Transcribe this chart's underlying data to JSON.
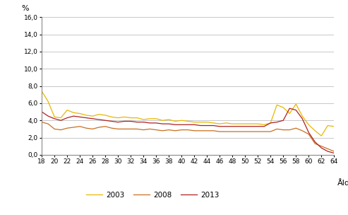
{
  "ages": [
    18,
    19,
    20,
    21,
    22,
    23,
    24,
    25,
    26,
    27,
    28,
    29,
    30,
    31,
    32,
    33,
    34,
    35,
    36,
    37,
    38,
    39,
    40,
    41,
    42,
    43,
    44,
    45,
    46,
    47,
    48,
    49,
    50,
    51,
    52,
    53,
    54,
    55,
    56,
    57,
    58,
    59,
    60,
    61,
    62,
    63,
    64
  ],
  "y2003": [
    7.4,
    6.2,
    4.4,
    4.3,
    5.2,
    4.9,
    4.8,
    4.6,
    4.5,
    4.7,
    4.6,
    4.4,
    4.3,
    4.4,
    4.3,
    4.3,
    4.1,
    4.2,
    4.2,
    4.0,
    4.1,
    3.9,
    4.0,
    3.9,
    3.8,
    3.8,
    3.8,
    3.7,
    3.6,
    3.7,
    3.6,
    3.6,
    3.6,
    3.6,
    3.6,
    3.5,
    3.7,
    5.8,
    5.5,
    4.8,
    5.9,
    4.5,
    3.5,
    2.8,
    2.2,
    3.4,
    3.3
  ],
  "y2008": [
    3.8,
    3.6,
    3.0,
    2.9,
    3.1,
    3.2,
    3.3,
    3.1,
    3.0,
    3.2,
    3.3,
    3.1,
    3.0,
    3.0,
    3.0,
    3.0,
    2.9,
    3.0,
    2.9,
    2.8,
    2.9,
    2.8,
    2.9,
    2.9,
    2.8,
    2.8,
    2.8,
    2.8,
    2.7,
    2.7,
    2.7,
    2.7,
    2.7,
    2.7,
    2.7,
    2.7,
    2.7,
    3.0,
    2.9,
    2.9,
    3.1,
    2.8,
    2.4,
    1.3,
    1.0,
    0.7,
    0.4
  ],
  "y2013": [
    5.0,
    4.5,
    4.2,
    4.0,
    4.3,
    4.5,
    4.4,
    4.3,
    4.2,
    4.1,
    4.0,
    3.9,
    3.8,
    3.9,
    3.9,
    3.8,
    3.8,
    3.7,
    3.7,
    3.6,
    3.6,
    3.5,
    3.5,
    3.5,
    3.5,
    3.4,
    3.4,
    3.4,
    3.3,
    3.3,
    3.3,
    3.3,
    3.3,
    3.3,
    3.3,
    3.3,
    3.7,
    3.8,
    4.0,
    5.4,
    5.2,
    4.2,
    2.6,
    1.5,
    0.8,
    0.4,
    0.2
  ],
  "color_2003": "#e8b800",
  "color_2008": "#c87020",
  "color_2013": "#b02020",
  "yticks": [
    0.0,
    2.0,
    4.0,
    6.0,
    8.0,
    10.0,
    12.0,
    14.0,
    16.0
  ],
  "xtick_labels": [
    "18",
    "20",
    "22",
    "24",
    "26",
    "28",
    "30",
    "32",
    "34",
    "36",
    "38",
    "40",
    "42",
    "44",
    "46",
    "48",
    "50",
    "52",
    "54",
    "56",
    "58",
    "60",
    "62",
    "64"
  ],
  "ylabel": "%",
  "xlabel": "Ålder",
  "legend_labels": [
    "2003",
    "2008",
    "2013"
  ],
  "ylim": [
    0.0,
    16.0
  ],
  "grid_color": "#c8c8c8",
  "bg_color": "#ffffff"
}
